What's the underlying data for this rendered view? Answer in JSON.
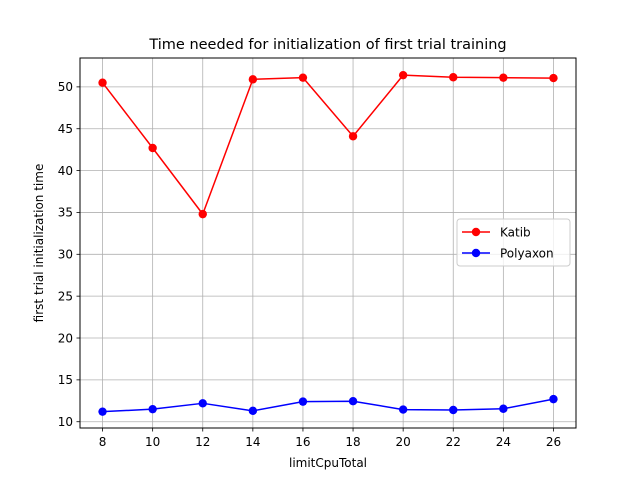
{
  "chart_data": {
    "type": "line",
    "title": "Time needed for initialization of first trial training",
    "xlabel": "limitCpuTotal",
    "ylabel": "first trial initialization time",
    "x": [
      8,
      10,
      12,
      14,
      16,
      18,
      20,
      22,
      24,
      26
    ],
    "xlim": [
      7.1,
      26.9
    ],
    "ylim": [
      9.25,
      53.45
    ],
    "xticks": [
      8,
      10,
      12,
      14,
      16,
      18,
      20,
      22,
      24,
      26
    ],
    "yticks": [
      10,
      15,
      20,
      25,
      30,
      35,
      40,
      45,
      50
    ],
    "grid": true,
    "legend_position": "center-right",
    "series": [
      {
        "name": "Katib",
        "color": "#ff0000",
        "marker": "circle",
        "values": [
          50.5,
          42.7,
          34.8,
          50.9,
          51.1,
          44.1,
          51.4,
          51.15,
          51.1,
          51.05
        ]
      },
      {
        "name": "Polyaxon",
        "color": "#0000ff",
        "marker": "circle",
        "values": [
          11.2,
          11.5,
          12.2,
          11.3,
          12.4,
          12.45,
          11.45,
          11.4,
          11.55,
          12.7
        ]
      }
    ]
  }
}
